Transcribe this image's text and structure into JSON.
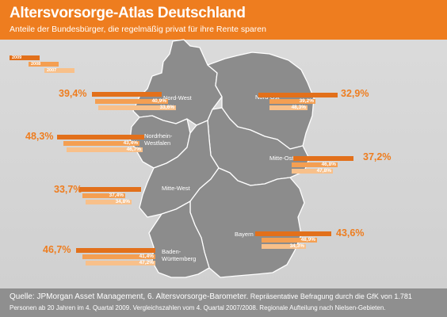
{
  "header": {
    "title": "Altersvorsorge-Atlas Deutschland",
    "subtitle": "Anteile der Bundesbürger, die regelmäßig privat für ihre Rente sparen"
  },
  "legend": {
    "years": [
      "2009",
      "2008",
      "2007"
    ]
  },
  "colors": {
    "bar_2009": "#e2701b",
    "bar_2008": "#f49f52",
    "bar_2007": "#f8c08a",
    "accent": "#ee7d1f",
    "map": "#8c8c8c"
  },
  "regions": [
    {
      "name": "Nord-West",
      "v2009": "39,4%",
      "v2008": "40,9%",
      "v2007": "33,6%"
    },
    {
      "name": "Nord-Ost",
      "v2009": "32,9%",
      "v2008": "39,2%",
      "v2007": "48,3%"
    },
    {
      "name": "Nordrhein-\nWestfalen",
      "v2009": "48,3%",
      "v2008": "43,4%",
      "v2007": "46,7%"
    },
    {
      "name": "Mitte-Ost",
      "v2009": "37,2%",
      "v2008": "46,8%",
      "v2007": "47,8%"
    },
    {
      "name": "Mitte-West",
      "v2009": "33,7%",
      "v2008": "37,4%",
      "v2007": "34,8%"
    },
    {
      "name": "Bayern",
      "v2009": "43,6%",
      "v2008": "48,9%",
      "v2007": "34,3%"
    },
    {
      "name": "Baden-\nWürttemberg",
      "v2009": "46,7%",
      "v2008": "41,4%",
      "v2007": "47,2%"
    }
  ],
  "footer": {
    "source_label": "Quelle: JPMorgan Asset Management, 6. Altersvorsorge-Barometer.",
    "source_detail": "Repräsentative Befragung durch die GfK von 1.781",
    "line2": "Personen ab 20 Jahren im 4. Quartal 2009. Vergleichszahlen vom 4. Quartal 2007/2008. Regionale Aufteilung nach Nielsen-Gebieten."
  }
}
